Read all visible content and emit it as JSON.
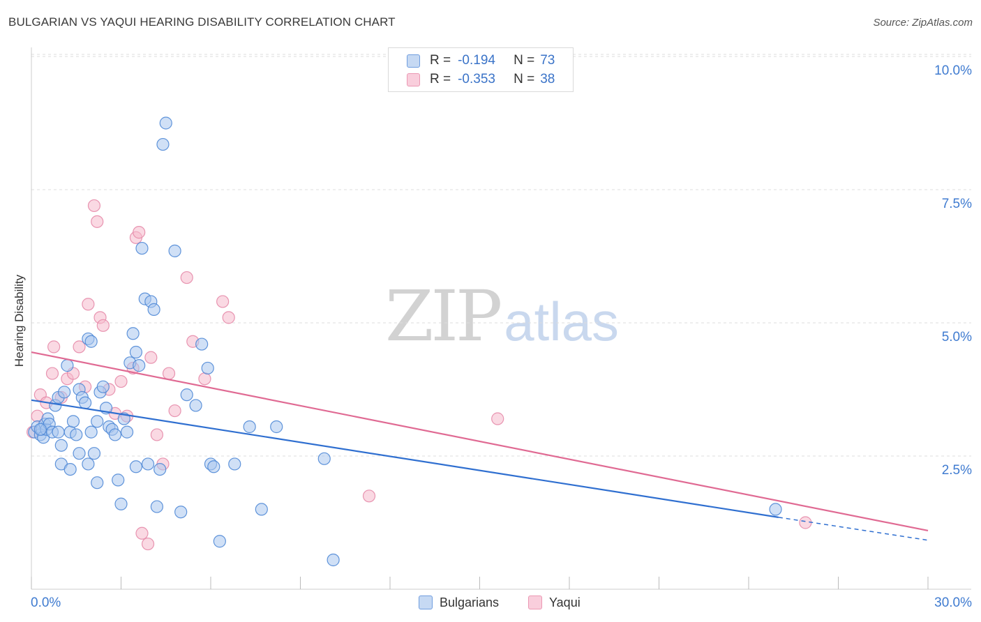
{
  "title": "BULGARIAN VS YAQUI HEARING DISABILITY CORRELATION CHART",
  "source": "Source: ZipAtlas.com",
  "watermark": {
    "part1": "ZIP",
    "part2": "atlas"
  },
  "legend": {
    "rows": [
      {
        "r_label": "R =",
        "r_value": "-0.194",
        "n_label": "N =",
        "n_value": "73"
      },
      {
        "r_label": "R =",
        "r_value": "-0.353",
        "n_label": "N =",
        "n_value": "38"
      }
    ]
  },
  "bottom_legend": [
    "Bulgarians",
    "Yaqui"
  ],
  "colors": {
    "blue_fill": "#a9c6ee",
    "blue_stroke": "#4f88d6",
    "blue_line": "#2f6fd0",
    "pink_fill": "#f6b9cc",
    "pink_stroke": "#e68aa8",
    "pink_line": "#e06a93",
    "tick_text": "#3f7bd0",
    "grid": "#dddddd"
  },
  "chart_data": {
    "type": "scatter",
    "title": "BULGARIAN VS YAQUI HEARING DISABILITY CORRELATION CHART",
    "xlabel": "",
    "ylabel": "Hearing Disability",
    "xlim": [
      0,
      30
    ],
    "ylim": [
      0,
      10.5
    ],
    "x_tick_labels": [
      {
        "value": 0,
        "label": "0.0%"
      },
      {
        "value": 30,
        "label": "30.0%"
      }
    ],
    "y_tick_labels": [
      {
        "value": 2.5,
        "label": "2.5%"
      },
      {
        "value": 5.0,
        "label": "5.0%"
      },
      {
        "value": 7.5,
        "label": "7.5%"
      },
      {
        "value": 10.0,
        "label": "10.0%"
      }
    ],
    "series": [
      {
        "name": "Bulgarians",
        "r": -0.194,
        "n": 73,
        "trend": {
          "x0": 0,
          "y0": 3.55,
          "x1": 25.0,
          "y1": 1.35,
          "dash_to_x": 30,
          "dash_to_y": 0.92
        },
        "points": [
          [
            0.1,
            2.95
          ],
          [
            0.2,
            3.05
          ],
          [
            0.3,
            2.9
          ],
          [
            0.35,
            3.0
          ],
          [
            0.4,
            2.85
          ],
          [
            0.45,
            3.1
          ],
          [
            0.5,
            3.0
          ],
          [
            0.55,
            3.2
          ],
          [
            0.6,
            3.1
          ],
          [
            0.7,
            2.95
          ],
          [
            0.8,
            3.45
          ],
          [
            0.9,
            3.6
          ],
          [
            1.0,
            2.7
          ],
          [
            1.1,
            3.7
          ],
          [
            1.2,
            4.2
          ],
          [
            1.3,
            2.95
          ],
          [
            1.4,
            3.15
          ],
          [
            1.5,
            2.9
          ],
          [
            1.6,
            3.75
          ],
          [
            1.7,
            3.6
          ],
          [
            1.8,
            3.5
          ],
          [
            1.9,
            4.7
          ],
          [
            2.0,
            4.65
          ],
          [
            2.1,
            2.55
          ],
          [
            2.2,
            3.15
          ],
          [
            2.3,
            3.7
          ],
          [
            2.4,
            3.8
          ],
          [
            2.5,
            3.4
          ],
          [
            2.6,
            3.05
          ],
          [
            2.7,
            3.0
          ],
          [
            2.8,
            2.9
          ],
          [
            2.9,
            2.05
          ],
          [
            3.0,
            1.6
          ],
          [
            3.1,
            3.2
          ],
          [
            3.2,
            2.95
          ],
          [
            3.3,
            4.25
          ],
          [
            3.4,
            4.8
          ],
          [
            3.5,
            4.45
          ],
          [
            3.6,
            4.2
          ],
          [
            3.7,
            6.4
          ],
          [
            3.8,
            5.45
          ],
          [
            3.9,
            2.35
          ],
          [
            4.0,
            5.4
          ],
          [
            4.1,
            5.25
          ],
          [
            4.2,
            1.55
          ],
          [
            4.3,
            2.25
          ],
          [
            4.4,
            8.35
          ],
          [
            4.5,
            8.75
          ],
          [
            4.8,
            6.35
          ],
          [
            5.0,
            1.45
          ],
          [
            5.2,
            3.65
          ],
          [
            5.5,
            3.45
          ],
          [
            5.7,
            4.6
          ],
          [
            5.9,
            4.15
          ],
          [
            6.0,
            2.35
          ],
          [
            6.1,
            2.3
          ],
          [
            6.3,
            0.9
          ],
          [
            6.8,
            2.35
          ],
          [
            7.3,
            3.05
          ],
          [
            7.7,
            1.5
          ],
          [
            8.2,
            3.05
          ],
          [
            9.8,
            2.45
          ],
          [
            10.1,
            0.55
          ],
          [
            24.9,
            1.5
          ],
          [
            1.0,
            2.35
          ],
          [
            1.3,
            2.25
          ],
          [
            1.6,
            2.55
          ],
          [
            1.9,
            2.35
          ],
          [
            2.2,
            2.0
          ],
          [
            3.5,
            2.3
          ],
          [
            0.3,
            3.0
          ],
          [
            0.9,
            2.95
          ],
          [
            2.0,
            2.95
          ]
        ]
      },
      {
        "name": "Yaqui",
        "r": -0.353,
        "n": 38,
        "trend": {
          "x0": 0,
          "y0": 4.45,
          "x1": 30,
          "y1": 1.1
        },
        "points": [
          [
            0.05,
            2.95
          ],
          [
            0.2,
            3.25
          ],
          [
            0.3,
            3.65
          ],
          [
            0.5,
            3.5
          ],
          [
            0.7,
            4.05
          ],
          [
            0.75,
            4.55
          ],
          [
            1.2,
            3.95
          ],
          [
            1.4,
            4.05
          ],
          [
            1.6,
            4.55
          ],
          [
            1.8,
            3.8
          ],
          [
            1.9,
            5.35
          ],
          [
            2.1,
            7.2
          ],
          [
            2.2,
            6.9
          ],
          [
            2.3,
            5.1
          ],
          [
            2.4,
            4.95
          ],
          [
            2.6,
            3.75
          ],
          [
            2.8,
            3.3
          ],
          [
            3.0,
            3.9
          ],
          [
            3.2,
            3.25
          ],
          [
            3.4,
            4.15
          ],
          [
            3.5,
            6.6
          ],
          [
            3.6,
            6.7
          ],
          [
            3.7,
            1.05
          ],
          [
            3.9,
            0.85
          ],
          [
            4.0,
            4.35
          ],
          [
            4.2,
            2.9
          ],
          [
            4.4,
            2.35
          ],
          [
            4.6,
            4.05
          ],
          [
            4.8,
            3.35
          ],
          [
            5.2,
            5.85
          ],
          [
            5.4,
            4.65
          ],
          [
            5.8,
            3.95
          ],
          [
            6.4,
            5.4
          ],
          [
            6.6,
            5.1
          ],
          [
            11.3,
            1.75
          ],
          [
            15.6,
            3.2
          ],
          [
            25.9,
            1.25
          ],
          [
            1.0,
            3.6
          ]
        ]
      }
    ]
  }
}
